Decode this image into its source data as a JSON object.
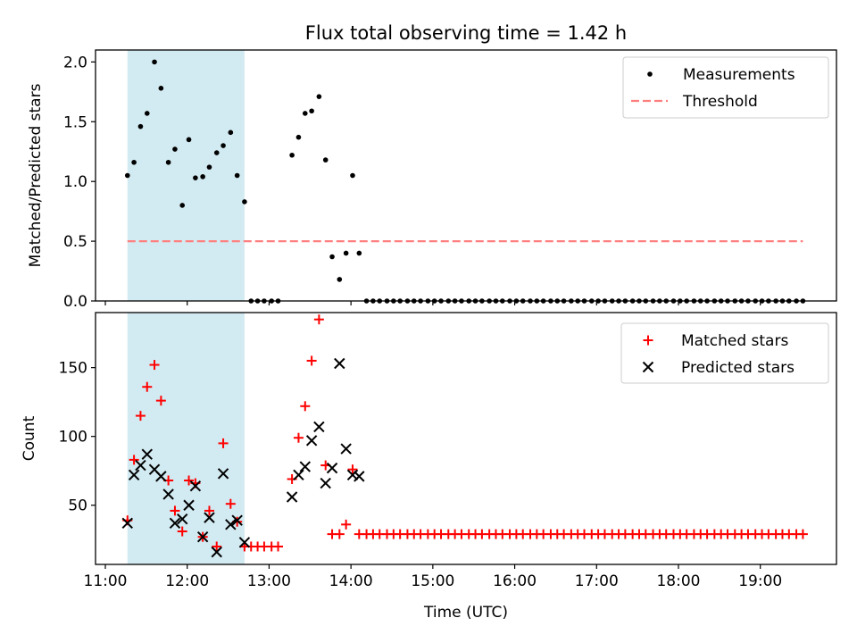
{
  "chart_data": [
    {
      "type": "scatter",
      "panel": "top",
      "title": "Flux total observing time = 1.42 h",
      "xlabel": "",
      "ylabel": "Matched/Predicted stars",
      "xlim": [
        10.88,
        19.93
      ],
      "ylim": [
        0.0,
        2.1
      ],
      "xticks": [
        11,
        12,
        13,
        14,
        15,
        16,
        17,
        18,
        19
      ],
      "xtick_labels": [],
      "yticks": [
        0.0,
        0.5,
        1.0,
        1.5,
        2.0
      ],
      "ytick_labels": [
        "0.0",
        "0.5",
        "1.0",
        "1.5",
        "2.0"
      ],
      "shaded_span": [
        11.27,
        12.7
      ],
      "shaded_color": "#add8e6",
      "legend_position": "top-right",
      "series": [
        {
          "name": "Measurements",
          "kind": "dot",
          "color": "#000000",
          "x": [
            11.27,
            11.35,
            11.43,
            11.51,
            11.6,
            11.68,
            11.77,
            11.85,
            11.94,
            12.02,
            12.1,
            12.19,
            12.27,
            12.36,
            12.44,
            12.53,
            12.61,
            12.7,
            12.78,
            12.86,
            12.94,
            13.03,
            13.11,
            13.28,
            13.36,
            13.44,
            13.52,
            13.61,
            13.69,
            13.77,
            13.86,
            13.94,
            14.02,
            14.1,
            14.19,
            14.27,
            14.35,
            14.44,
            14.52,
            14.6,
            14.69,
            14.77,
            14.85,
            14.94,
            15.02,
            15.1,
            15.19,
            15.27,
            15.35,
            15.44,
            15.52,
            15.6,
            15.69,
            15.77,
            15.85,
            15.94,
            16.02,
            16.1,
            16.19,
            16.27,
            16.35,
            16.44,
            16.52,
            16.6,
            16.69,
            16.77,
            16.85,
            16.94,
            17.02,
            17.1,
            17.19,
            17.27,
            17.35,
            17.44,
            17.52,
            17.6,
            17.69,
            17.77,
            17.85,
            17.94,
            18.02,
            18.1,
            18.19,
            18.27,
            18.35,
            18.44,
            18.52,
            18.6,
            18.69,
            18.77,
            18.85,
            18.94,
            19.02,
            19.1,
            19.19,
            19.27,
            19.35,
            19.44,
            19.52
          ],
          "y": [
            1.05,
            1.16,
            1.46,
            1.57,
            2.0,
            1.78,
            1.16,
            1.27,
            0.8,
            1.35,
            1.03,
            1.04,
            1.12,
            1.24,
            1.3,
            1.41,
            1.05,
            0.83,
            0,
            0,
            0,
            0,
            0,
            1.22,
            1.37,
            1.57,
            1.59,
            1.71,
            1.18,
            0.37,
            0.18,
            0.4,
            1.05,
            0.4,
            0,
            0,
            0,
            0,
            0,
            0,
            0,
            0,
            0,
            0,
            0,
            0,
            0,
            0,
            0,
            0,
            0,
            0,
            0,
            0,
            0,
            0,
            0,
            0,
            0,
            0,
            0,
            0,
            0,
            0,
            0,
            0,
            0,
            0,
            0,
            0,
            0,
            0,
            0,
            0,
            0,
            0,
            0,
            0,
            0,
            0,
            0,
            0,
            0,
            0,
            0,
            0,
            0,
            0,
            0,
            0,
            0,
            0,
            0,
            0,
            0,
            0,
            0,
            0,
            0
          ]
        },
        {
          "name": "Threshold",
          "kind": "dashed-line",
          "color": "#ff7f7f",
          "x": [
            11.27,
            19.52
          ],
          "y": [
            0.5,
            0.5
          ]
        }
      ]
    },
    {
      "type": "scatter",
      "panel": "bottom",
      "title": "",
      "xlabel": "Time (UTC)",
      "ylabel": "Count",
      "xlim": [
        10.88,
        19.93
      ],
      "ylim": [
        7,
        190
      ],
      "xticks": [
        11,
        12,
        13,
        14,
        15,
        16,
        17,
        18,
        19
      ],
      "xtick_labels": [
        "11:00",
        "12:00",
        "13:00",
        "14:00",
        "15:00",
        "16:00",
        "17:00",
        "18:00",
        "19:00"
      ],
      "yticks": [
        50,
        100,
        150
      ],
      "ytick_labels": [
        "50",
        "100",
        "150"
      ],
      "shaded_span": [
        11.27,
        12.7
      ],
      "shaded_color": "#add8e6",
      "legend_position": "top-right",
      "series": [
        {
          "name": "Matched stars",
          "kind": "plus",
          "color": "#ff0000",
          "x": [
            11.27,
            11.35,
            11.43,
            11.51,
            11.6,
            11.68,
            11.77,
            11.85,
            11.94,
            12.02,
            12.1,
            12.19,
            12.27,
            12.36,
            12.44,
            12.53,
            12.61,
            12.7,
            12.78,
            12.86,
            12.94,
            13.03,
            13.11,
            13.28,
            13.36,
            13.44,
            13.52,
            13.61,
            13.69,
            13.77,
            13.86,
            13.94,
            14.02,
            14.1,
            14.19,
            14.27,
            14.35,
            14.44,
            14.52,
            14.6,
            14.69,
            14.77,
            14.85,
            14.94,
            15.02,
            15.1,
            15.19,
            15.27,
            15.35,
            15.44,
            15.52,
            15.6,
            15.69,
            15.77,
            15.85,
            15.94,
            16.02,
            16.1,
            16.19,
            16.27,
            16.35,
            16.44,
            16.52,
            16.6,
            16.69,
            16.77,
            16.85,
            16.94,
            17.02,
            17.1,
            17.19,
            17.27,
            17.35,
            17.44,
            17.52,
            17.6,
            17.69,
            17.77,
            17.85,
            17.94,
            18.02,
            18.1,
            18.19,
            18.27,
            18.35,
            18.44,
            18.52,
            18.6,
            18.69,
            18.77,
            18.85,
            18.94,
            19.02,
            19.1,
            19.19,
            19.27,
            19.35,
            19.44,
            19.52
          ],
          "y": [
            39,
            83,
            115,
            136,
            152,
            126,
            68,
            46,
            31,
            68,
            66,
            27,
            46,
            20,
            95,
            51,
            38,
            20,
            20,
            20,
            20,
            20,
            20,
            69,
            99,
            122,
            155,
            185,
            79,
            29,
            29,
            36,
            76,
            29,
            29,
            29,
            29,
            29,
            29,
            29,
            29,
            29,
            29,
            29,
            29,
            29,
            29,
            29,
            29,
            29,
            29,
            29,
            29,
            29,
            29,
            29,
            29,
            29,
            29,
            29,
            29,
            29,
            29,
            29,
            29,
            29,
            29,
            29,
            29,
            29,
            29,
            29,
            29,
            29,
            29,
            29,
            29,
            29,
            29,
            29,
            29,
            29,
            29,
            29,
            29,
            29,
            29,
            29,
            29,
            29,
            29,
            29,
            29,
            29,
            29,
            29,
            29,
            29,
            29
          ]
        },
        {
          "name": "Predicted stars",
          "kind": "x",
          "color": "#000000",
          "x": [
            11.27,
            11.35,
            11.43,
            11.51,
            11.6,
            11.68,
            11.77,
            11.85,
            11.94,
            12.02,
            12.1,
            12.19,
            12.27,
            12.36,
            12.44,
            12.53,
            12.61,
            12.7,
            13.28,
            13.36,
            13.44,
            13.52,
            13.61,
            13.69,
            13.77,
            13.86,
            13.94,
            14.02,
            14.1
          ],
          "y": [
            37,
            72,
            79,
            87,
            76,
            71,
            58,
            37,
            40,
            50,
            64,
            27,
            41,
            16,
            73,
            36,
            39,
            23,
            56,
            72,
            78,
            97,
            107,
            66,
            77,
            153,
            91,
            72,
            71
          ]
        }
      ]
    }
  ]
}
